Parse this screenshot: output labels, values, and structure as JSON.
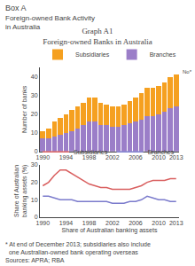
{
  "chart_data": [
    {
      "type": "bar",
      "stacked": true,
      "title": "Graph A1\nForeign-owned Banks in Australia",
      "ylabel": "Number of banks",
      "annotations": [
        "Box A",
        "Foreign-owned Bank Activity",
        "in Australia",
        "No*"
      ],
      "categories": [
        "1990",
        null,
        null,
        null,
        "1994",
        null,
        null,
        null,
        "1998",
        null,
        null,
        null,
        "2002",
        null,
        null,
        null,
        "2006",
        null,
        null,
        null,
        "2010",
        null,
        null,
        "2013"
      ],
      "series": [
        {
          "name": "Branches",
          "color": "#9b7ec8",
          "values": [
            7,
            7,
            8,
            9,
            10,
            11,
            12,
            14,
            16,
            16,
            14,
            14,
            13,
            13,
            14,
            15,
            16,
            17,
            19,
            19,
            20,
            21,
            23,
            24
          ]
        },
        {
          "name": "Subsidiaries",
          "color": "#f5a020",
          "values": [
            4,
            5,
            8,
            9,
            10,
            11,
            12,
            12,
            13,
            13,
            12,
            11,
            11,
            11,
            11,
            12,
            13,
            14,
            15,
            15,
            15,
            16,
            17,
            17
          ]
        }
      ],
      "ylim": [
        0,
        45
      ],
      "yticks": [
        0,
        10,
        20,
        30,
        40
      ],
      "grid": false,
      "legend": "upper left"
    },
    {
      "type": "line",
      "ylabel": "Share of Australian\nbanking assets (%)",
      "xlabel": "Share of Australian banking assets",
      "annotations": [
        "* At end of December 2013; subsidiaries also include",
        "  one Australian-owned bank operating overseas",
        "Sources: APRA; RBA"
      ],
      "categories": [
        "1990",
        null,
        null,
        null,
        "1994",
        null,
        null,
        null,
        "1998",
        null,
        null,
        null,
        "2002",
        null,
        null,
        null,
        "2006",
        null,
        null,
        null,
        "2010",
        null,
        null,
        "2013"
      ],
      "series": [
        {
          "name": "Subsidiaries",
          "color": "#d95f5f",
          "values": [
            18,
            20,
            24,
            27,
            27,
            25,
            23,
            21,
            19,
            18,
            17,
            17,
            16,
            16,
            16,
            16,
            17,
            18,
            20,
            21,
            21,
            21,
            22,
            22
          ]
        },
        {
          "name": "Branches",
          "color": "#7b7bcc",
          "values": [
            12,
            12,
            11,
            10,
            10,
            10,
            9,
            9,
            9,
            9,
            9,
            9,
            8,
            8,
            8,
            9,
            9,
            10,
            12,
            11,
            10,
            10,
            9,
            9
          ]
        }
      ],
      "ylim": [
        0,
        30
      ],
      "yticks": [
        0,
        10,
        20,
        30
      ],
      "grid": false,
      "legend": "upper right"
    }
  ]
}
